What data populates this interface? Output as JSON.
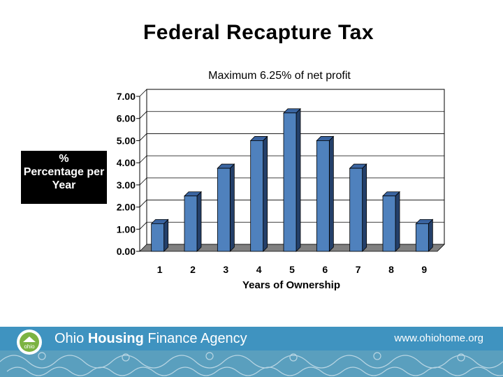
{
  "slide": {
    "title": "Federal Recapture Tax"
  },
  "chart_data": {
    "type": "bar",
    "subtitle": "Maximum 6.25% of net profit",
    "ylabel_lines": [
      "%",
      "Percentage per",
      "Year"
    ],
    "xlabel": "Years of Ownership",
    "categories": [
      "1",
      "2",
      "3",
      "4",
      "5",
      "6",
      "7",
      "8",
      "9"
    ],
    "values": [
      1.25,
      2.5,
      3.75,
      5.0,
      6.25,
      5.0,
      3.75,
      2.5,
      1.25
    ],
    "ylim": [
      0,
      7
    ],
    "yticks": [
      "0.00",
      "1.00",
      "2.00",
      "3.00",
      "4.00",
      "5.00",
      "6.00",
      "7.00"
    ],
    "grid": true,
    "legend": "none",
    "bar_color": "#4f81bd"
  },
  "footer": {
    "logo_text": "ohio",
    "agency_prefix": "Ohio ",
    "agency_bold": "Housing",
    "agency_suffix": " Finance Agency",
    "url": "www.ohiohome.org",
    "band_color": "#3f93c0"
  }
}
